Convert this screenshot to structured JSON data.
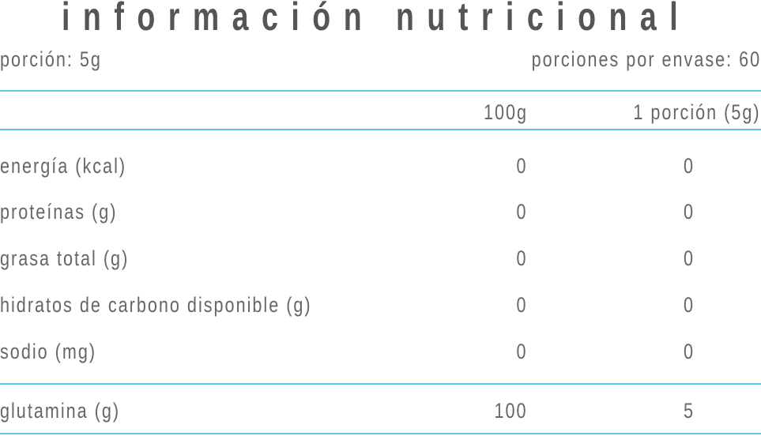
{
  "title": "información nutricional",
  "serving_size": "porción: 5g",
  "servings_per_container": "porciones por envase: 60",
  "columns": [
    "100g",
    "1 porción (5g)"
  ],
  "rows": [
    {
      "label": "energía (kcal)",
      "per100": "0",
      "perServing": "0"
    },
    {
      "label": "proteínas (g)",
      "per100": "0",
      "perServing": "0"
    },
    {
      "label": "grasa total (g)",
      "per100": "0",
      "perServing": "0"
    },
    {
      "label": "hidratos de carbono disponible (g)",
      "per100": "0",
      "perServing": "0"
    },
    {
      "label": "sodio (mg)",
      "per100": "0",
      "perServing": "0"
    },
    {
      "label": "glutamina (g)",
      "per100": "100",
      "perServing": "5"
    }
  ],
  "colors": {
    "rule": "#5cc8f2",
    "text": "#666666",
    "title": "#555555"
  }
}
